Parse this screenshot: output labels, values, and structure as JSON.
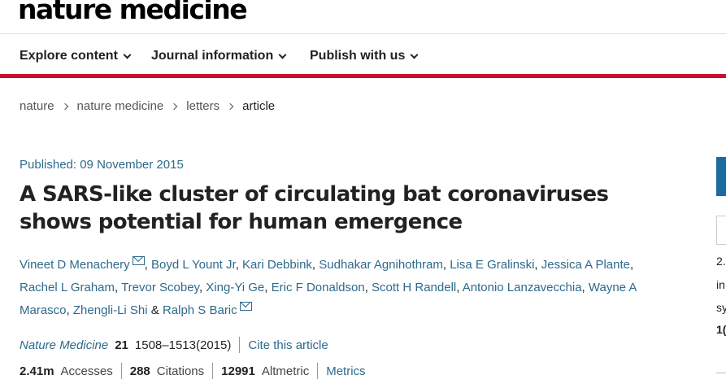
{
  "site": {
    "logo": "nature medicine"
  },
  "nav": {
    "items": [
      {
        "label": "Explore content"
      },
      {
        "label": "Journal information"
      },
      {
        "label": "Publish with us"
      }
    ]
  },
  "breadcrumb": [
    "nature",
    "nature medicine",
    "letters",
    "article"
  ],
  "article": {
    "published": "Published: 09 November 2015",
    "title_line1": "A SARS-like cluster of circulating bat coronaviruses",
    "title_line2": "shows potential for human emergence",
    "authors": [
      "Vineet D Menachery",
      "Boyd L Yount Jr",
      "Kari Debbink",
      "Sudhakar Agnihothram",
      "Lisa E Gralinski",
      "Jessica A Plante",
      "Rachel L Graham",
      "Trevor Scobey",
      "Xing-Yi Ge",
      "Eric F Donaldson",
      "Scott H Randell",
      "Antonio Lanzavecchia",
      "Wayne A Marasco",
      "Zhengli-Li Shi",
      "Ralph S Baric"
    ],
    "author_separator": ", ",
    "author_final_separator": " & ",
    "journal": "Nature Medicine",
    "volume": "21",
    "pages": "1508–1513(2015)",
    "cite_label": "Cite this article"
  },
  "metrics": {
    "accesses_value": "2.41m",
    "accesses_label": "Accesses",
    "citations_value": "288",
    "citations_label": "Citations",
    "altmetric_value": "12991",
    "altmetric_label": "Altmetric",
    "metrics_link": "Metrics"
  },
  "sidebar": {
    "line1": "2.",
    "line2": "in",
    "line3": "sy",
    "line4": "1("
  },
  "colors": {
    "accent_red": "#c8102e",
    "link_blue": "#2d6a8c",
    "button_blue": "#1a6ba0"
  }
}
